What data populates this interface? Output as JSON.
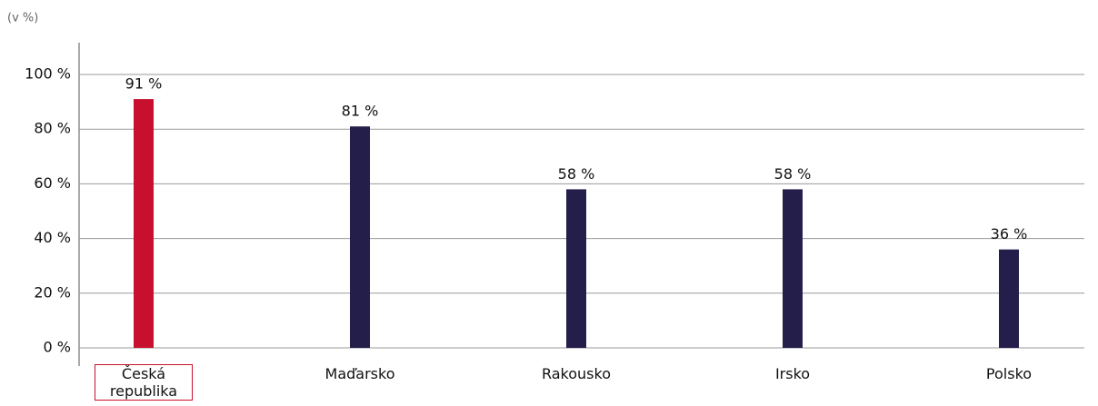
{
  "chart_data": {
    "type": "bar",
    "y_axis_label": "(v %)",
    "categories": [
      "Česká republika",
      "Maďarsko",
      "Rakousko",
      "Irsko",
      "Polsko"
    ],
    "values": [
      91,
      81,
      58,
      58,
      36
    ],
    "value_labels": [
      "91 %",
      "81 %",
      "58 %",
      "58 %",
      "36 %"
    ],
    "color": "#231f4a",
    "colors": [
      "#c8102e",
      "#231f4a",
      "#231f4a",
      "#231f4a",
      "#231f4a"
    ],
    "ylim": [
      0,
      100
    ],
    "yticks": [
      {
        "value": 0,
        "label": "0 %"
      },
      {
        "value": 20,
        "label": "20 %"
      },
      {
        "value": 40,
        "label": "40 %"
      },
      {
        "value": 60,
        "label": "60 %"
      },
      {
        "value": 80,
        "label": "80 %"
      },
      {
        "value": 100,
        "label": "100 %"
      }
    ],
    "grid": true
  }
}
